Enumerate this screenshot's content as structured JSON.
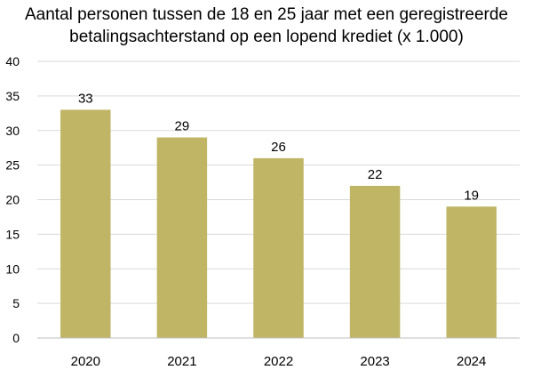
{
  "chart_data": {
    "type": "bar",
    "title_lines": [
      "Aantal personen tussen de 18 en 25 jaar met een geregistreerde",
      "betalingsachterstand op een lopend krediet (x 1.000)"
    ],
    "categories": [
      "2020",
      "2021",
      "2022",
      "2023",
      "2024"
    ],
    "values": [
      33,
      29,
      26,
      22,
      19
    ],
    "data_labels": [
      "33",
      "29",
      "26",
      "22",
      "19"
    ],
    "yticks": [
      "0",
      "5",
      "10",
      "15",
      "20",
      "25",
      "30",
      "35",
      "40"
    ],
    "ylim": [
      0,
      40
    ],
    "grid": true,
    "legend": false,
    "bar_color": "#bfb564",
    "grid_color": "#d9d9d9"
  }
}
